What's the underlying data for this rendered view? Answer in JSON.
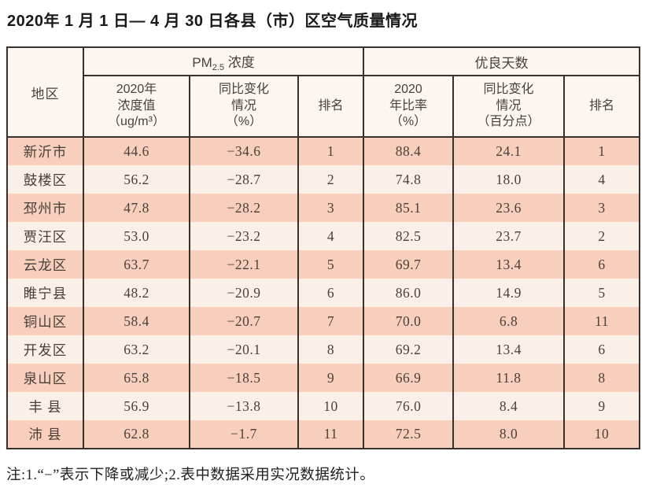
{
  "title": "2020年 1 月 1 日— 4 月 30 日各县（市）区空气质量情况",
  "note": "注:1.“−”表示下降或减少;2.表中数据采用实况数据统计。",
  "table": {
    "region_header": "地区",
    "pm25_group": {
      "prefix": "PM",
      "sub": "2.5",
      "suffix": " 浓度"
    },
    "good_days_group": "优良天数",
    "sub_headers": {
      "pm_value": "2020年\n浓度值\n（ug/m³）",
      "pm_change": "同比变化\n情况\n（%）",
      "pm_rank": "排名",
      "good_rate": "2020\n年比率\n（%）",
      "good_change": "同比变化\n情况\n（百分点）",
      "good_rank": "排名"
    },
    "rows": [
      {
        "region": "新沂市",
        "pm_value": "44.6",
        "pm_change": "−34.6",
        "pm_rank": "1",
        "good_rate": "88.4",
        "good_change": "24.1",
        "good_rank": "1"
      },
      {
        "region": "鼓楼区",
        "pm_value": "56.2",
        "pm_change": "−28.7",
        "pm_rank": "2",
        "good_rate": "74.8",
        "good_change": "18.0",
        "good_rank": "4"
      },
      {
        "region": "邳州市",
        "pm_value": "47.8",
        "pm_change": "−28.2",
        "pm_rank": "3",
        "good_rate": "85.1",
        "good_change": "23.6",
        "good_rank": "3"
      },
      {
        "region": "贾汪区",
        "pm_value": "53.0",
        "pm_change": "−23.2",
        "pm_rank": "4",
        "good_rate": "82.5",
        "good_change": "23.7",
        "good_rank": "2"
      },
      {
        "region": "云龙区",
        "pm_value": "63.7",
        "pm_change": "−22.1",
        "pm_rank": "5",
        "good_rate": "69.7",
        "good_change": "13.4",
        "good_rank": "6"
      },
      {
        "region": "睢宁县",
        "pm_value": "48.2",
        "pm_change": "−20.9",
        "pm_rank": "6",
        "good_rate": "86.0",
        "good_change": "14.9",
        "good_rank": "5"
      },
      {
        "region": "铜山区",
        "pm_value": "58.4",
        "pm_change": "−20.7",
        "pm_rank": "7",
        "good_rate": "70.0",
        "good_change": "6.8",
        "good_rank": "11"
      },
      {
        "region": "开发区",
        "pm_value": "63.2",
        "pm_change": "−20.1",
        "pm_rank": "8",
        "good_rate": "69.2",
        "good_change": "13.4",
        "good_rank": "6"
      },
      {
        "region": "泉山区",
        "pm_value": "65.8",
        "pm_change": "−18.5",
        "pm_rank": "9",
        "good_rate": "66.9",
        "good_change": "11.8",
        "good_rank": "8"
      },
      {
        "region": "丰 县",
        "pm_value": "56.9",
        "pm_change": "−13.8",
        "pm_rank": "10",
        "good_rate": "76.0",
        "good_change": "8.4",
        "good_rank": "9"
      },
      {
        "region": "沛 县",
        "pm_value": "62.8",
        "pm_change": "−1.7",
        "pm_rank": "11",
        "good_rate": "72.5",
        "good_change": "8.0",
        "good_rank": "10"
      }
    ]
  },
  "chart_data": {
    "type": "table",
    "columns": [
      "地区",
      "PM2.5 2020年浓度值（ug/m³）",
      "PM2.5 同比变化情况（%）",
      "PM2.5 排名",
      "优良天数 2020年比率（%）",
      "优良天数 同比变化情况（百分点）",
      "优良天数 排名"
    ],
    "rows": [
      [
        "新沂市",
        44.6,
        -34.6,
        1,
        88.4,
        24.1,
        1
      ],
      [
        "鼓楼区",
        56.2,
        -28.7,
        2,
        74.8,
        18.0,
        4
      ],
      [
        "邳州市",
        47.8,
        -28.2,
        3,
        85.1,
        23.6,
        3
      ],
      [
        "贾汪区",
        53.0,
        -23.2,
        4,
        82.5,
        23.7,
        2
      ],
      [
        "云龙区",
        63.7,
        -22.1,
        5,
        69.7,
        13.4,
        6
      ],
      [
        "睢宁县",
        48.2,
        -20.9,
        6,
        86.0,
        14.9,
        5
      ],
      [
        "铜山区",
        58.4,
        -20.7,
        7,
        70.0,
        6.8,
        11
      ],
      [
        "开发区",
        63.2,
        -20.1,
        8,
        69.2,
        13.4,
        6
      ],
      [
        "泉山区",
        65.8,
        -18.5,
        9,
        66.9,
        11.8,
        8
      ],
      [
        "丰县",
        56.9,
        -13.8,
        10,
        76.0,
        8.4,
        9
      ],
      [
        "沛县",
        62.8,
        -1.7,
        11,
        72.5,
        8.0,
        10
      ]
    ]
  },
  "colors": {
    "border": "#37312e",
    "row_salmon": "#f8cebd",
    "row_light": "#fbf0e8",
    "header_bg": "#fdf6f0",
    "text": "#4a403a",
    "title_color": "#191919"
  }
}
